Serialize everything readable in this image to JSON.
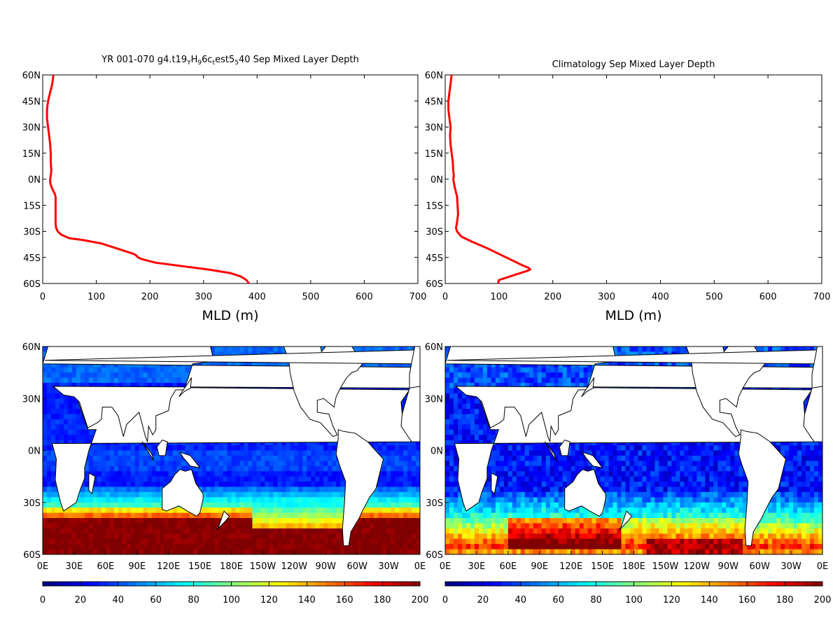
{
  "colorbar": {
    "stops": [
      "#00007f",
      "#0000ff",
      "#0080ff",
      "#00ffff",
      "#80ff80",
      "#ffff00",
      "#ff8000",
      "#ff0000",
      "#7f0000"
    ],
    "ticks": [
      "0",
      "20",
      "40",
      "60",
      "80",
      "100",
      "120",
      "140",
      "160",
      "180",
      "200"
    ]
  },
  "chart_data": [
    {
      "type": "line",
      "title": "YR 001-070 g4.t19<sub>Y</sub>H<sub>9</sub>6c<sub>t</sub>est5<sub>5</sub>40 Sep Mixed Layer Depth",
      "title_parts": [
        {
          "t": "YR 001-070 g4.t19",
          "sub": false
        },
        {
          "t": "Y",
          "sub": true
        },
        {
          "t": "H",
          "sub": false
        },
        {
          "t": "9",
          "sub": true
        },
        {
          "t": "6c",
          "sub": false
        },
        {
          "t": "t",
          "sub": true
        },
        {
          "t": "est5",
          "sub": false
        },
        {
          "t": "5",
          "sub": true
        },
        {
          "t": "40 Sep Mixed Layer Depth",
          "sub": false
        }
      ],
      "xlabel": "MLD (m)",
      "ylabel": "",
      "xlim": [
        0,
        700
      ],
      "ylim": [
        -60,
        60
      ],
      "xticks": [
        "0",
        "100",
        "200",
        "300",
        "400",
        "500",
        "600",
        "700"
      ],
      "yticks": [
        "60N",
        "45N",
        "30N",
        "15N",
        "0N",
        "15S",
        "30S",
        "45S",
        "60S"
      ],
      "series_color": "#ff0000",
      "series": [
        {
          "lat": [
            60,
            55,
            50,
            45,
            40,
            35,
            30,
            25,
            20,
            15,
            10,
            5,
            2,
            0,
            -2,
            -5,
            -8,
            -10,
            -15,
            -20,
            -25,
            -28,
            -30,
            -32,
            -34,
            -35,
            -37,
            -40,
            -43,
            -44,
            -45,
            -46,
            -48,
            -50,
            -52,
            -54,
            -56,
            -58,
            -60
          ],
          "mld": [
            20,
            18,
            14,
            10,
            8,
            8,
            10,
            12,
            14,
            15,
            15,
            16,
            15,
            14,
            14,
            17,
            22,
            24,
            24,
            24,
            24,
            25,
            28,
            35,
            50,
            75,
            110,
            140,
            170,
            175,
            178,
            185,
            210,
            260,
            310,
            350,
            370,
            380,
            385
          ]
        }
      ]
    },
    {
      "type": "line",
      "title": "Climatology Sep Mixed Layer Depth",
      "xlabel": "MLD (m)",
      "ylabel": "",
      "xlim": [
        0,
        700
      ],
      "ylim": [
        -60,
        60
      ],
      "xticks": [
        "0",
        "100",
        "200",
        "300",
        "400",
        "500",
        "600",
        "700"
      ],
      "yticks": [
        "60N",
        "45N",
        "30N",
        "15N",
        "0N",
        "15S",
        "30S",
        "45S",
        "60S"
      ],
      "series_color": "#ff0000",
      "series": [
        {
          "lat": [
            60,
            55,
            50,
            45,
            40,
            35,
            30,
            25,
            20,
            15,
            10,
            5,
            2,
            0,
            -5,
            -10,
            -15,
            -20,
            -25,
            -28,
            -30,
            -33,
            -36,
            -40,
            -43,
            -46,
            -49,
            -51,
            -52,
            -53,
            -55,
            -57,
            -58,
            -60
          ],
          "mld": [
            12,
            10,
            8,
            6,
            6,
            8,
            10,
            9,
            10,
            12,
            14,
            15,
            16,
            15,
            18,
            22,
            23,
            24,
            22,
            20,
            22,
            30,
            50,
            80,
            100,
            120,
            140,
            155,
            158,
            150,
            130,
            110,
            100,
            98
          ]
        }
      ]
    },
    {
      "type": "heatmap",
      "title": "",
      "xlabel": "",
      "ylabel": "",
      "colorbar_range": [
        0,
        200
      ],
      "xticks": [
        "0E",
        "30E",
        "60E",
        "90E",
        "120E",
        "150E",
        "180E",
        "150W",
        "120W",
        "90W",
        "60W",
        "30W",
        "0E"
      ],
      "yticks": [
        "60N",
        "30N",
        "0N",
        "30S",
        "60S"
      ],
      "variant": "model"
    },
    {
      "type": "heatmap",
      "title": "",
      "xlabel": "",
      "ylabel": "",
      "colorbar_range": [
        0,
        200
      ],
      "xticks": [
        "0E",
        "30E",
        "60E",
        "90E",
        "120E",
        "150E",
        "180E",
        "150W",
        "120W",
        "90W",
        "60W",
        "30W",
        "0E"
      ],
      "yticks": [
        "60N",
        "30N",
        "0N",
        "30S",
        "60S"
      ],
      "variant": "climatology"
    }
  ]
}
